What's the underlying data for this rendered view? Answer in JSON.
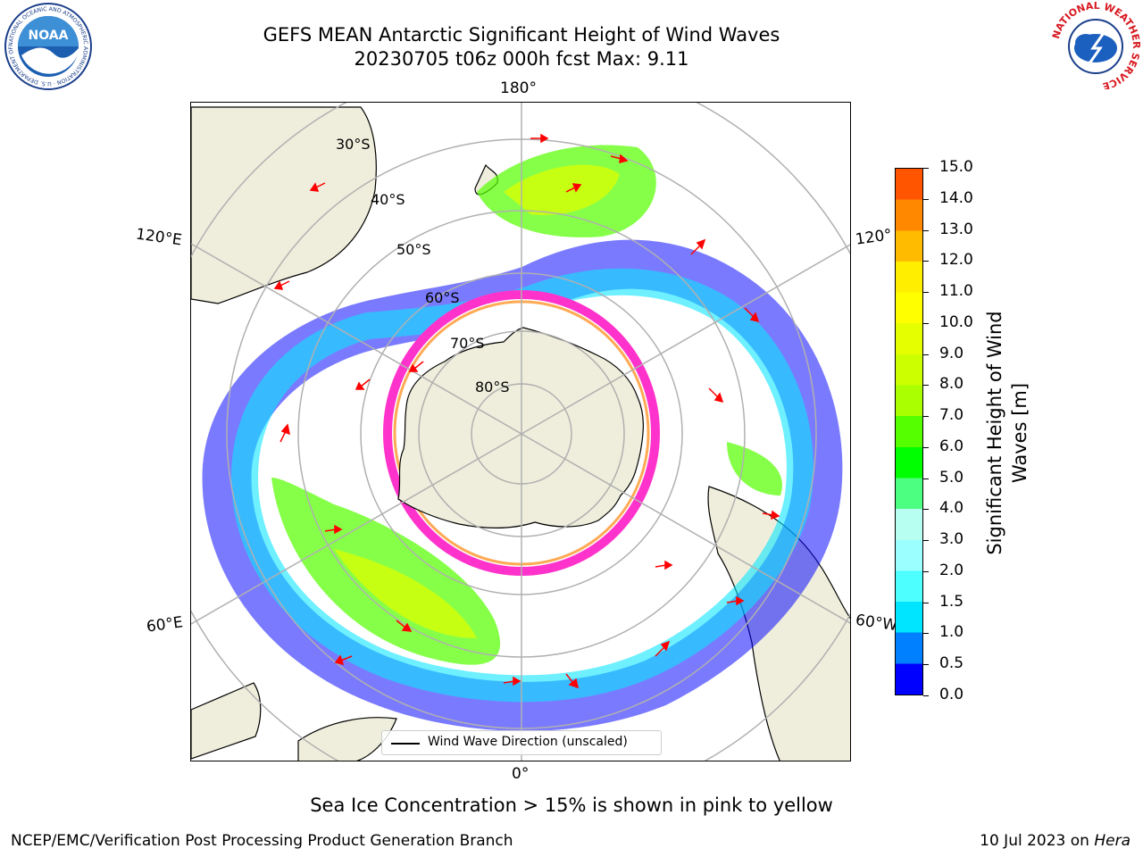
{
  "header": {
    "title_line1": "GEFS MEAN Antarctic Significant Height of Wind Waves",
    "title_line2": "20230705 t06z 000h fcst   Max: 9.11"
  },
  "logos": {
    "noaa": "NOAA",
    "noaa_ring_text": "NATIONAL OCEANIC AND ATMOSPHERIC ADMINISTRATION · U.S. DEPARTMENT OF COMMERCE",
    "nws_ring_text": "NATIONAL WEATHER SERVICE"
  },
  "map": {
    "projection": "south-polar-stereographic",
    "lon_labels": {
      "top": "180°",
      "left_upper": "120°E",
      "right_upper": "120°",
      "left_lower": "60°E",
      "right_lower": "60°W",
      "bottom": "0°"
    },
    "lat_labels": [
      "30°S",
      "40°S",
      "50°S",
      "60°S",
      "70°S",
      "80°S"
    ],
    "land_color": "#efeedc",
    "ice_edge_colors": [
      "#ff33cc",
      "#ffaa55",
      "#ffd84d"
    ]
  },
  "legend": {
    "label": "Wind Wave Direction (unscaled)"
  },
  "colorbar": {
    "title": "Significant Height of Wind Waves [m]",
    "ticks": [
      "15.0",
      "14.0",
      "13.0",
      "12.0",
      "11.0",
      "10.0",
      "9.0",
      "8.0",
      "7.0",
      "6.0",
      "5.0",
      "4.0",
      "3.0",
      "2.0",
      "1.5",
      "1.0",
      "0.5",
      "0.0"
    ],
    "colors_bottom_to_top": [
      "#0000ff",
      "#0080ff",
      "#00e5ff",
      "#4dffff",
      "#9bffff",
      "#b7fff0",
      "#4dff80",
      "#00ff00",
      "#55ff00",
      "#aaff00",
      "#ccff00",
      "#e6ff00",
      "#ffff00",
      "#ffee00",
      "#ffbb00",
      "#ff8800",
      "#ff5500",
      "#ff2a00",
      "#ff0000"
    ]
  },
  "footer": {
    "note": "Sea Ice Concentration > 15% is shown in pink to yellow",
    "credit": "NCEP/EMC/Verification Post Processing Product Generation Branch",
    "date": "10 Jul 2023 on",
    "machine": "Hera"
  }
}
